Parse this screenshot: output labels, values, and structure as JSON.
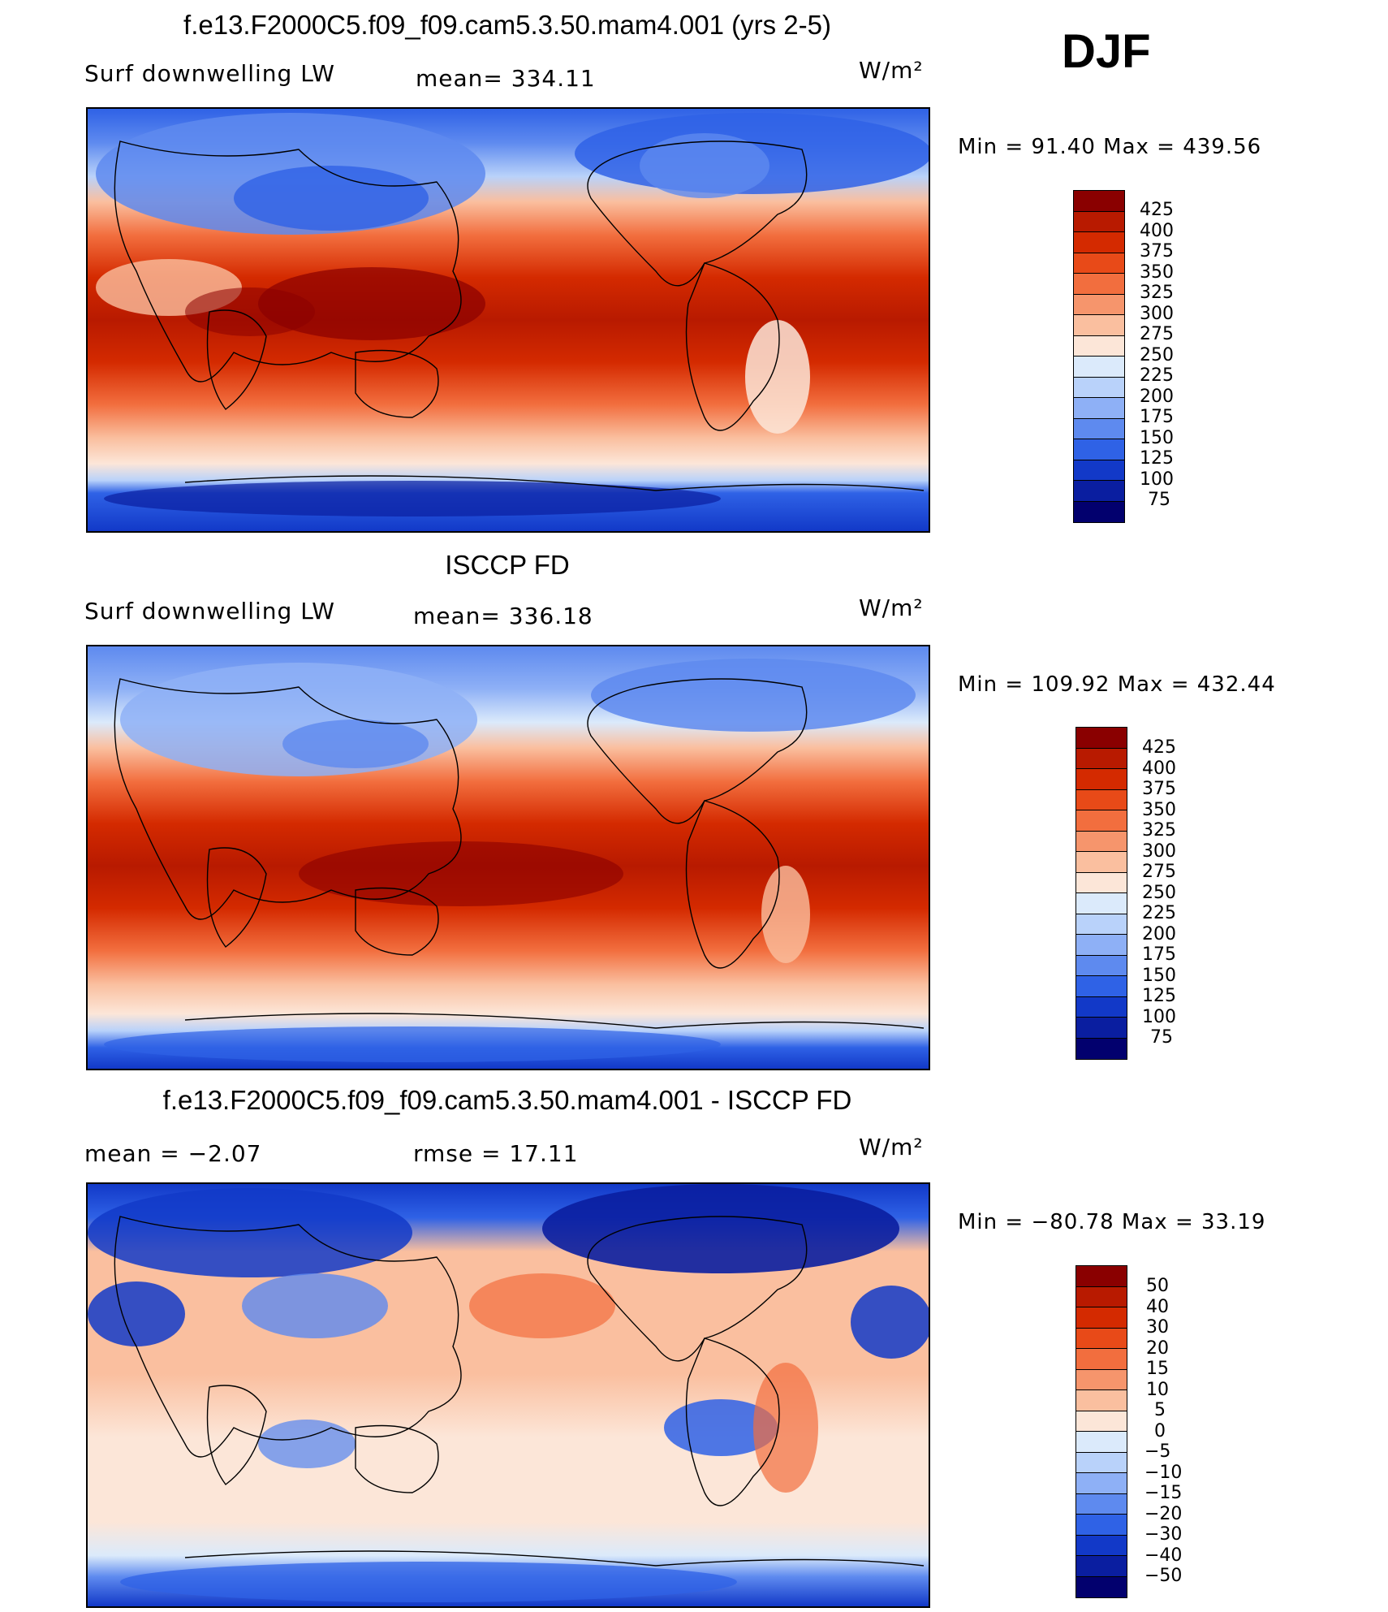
{
  "season": "DJF",
  "units_label": "W/m²",
  "panels": [
    {
      "title": "f.e13.F2000C5.f09_f09.cam5.3.50.mam4.001 (yrs 2-5)",
      "left_label": "Surf downwelling LW",
      "center_label": "mean= 334.11",
      "units": "W/m²",
      "min_max": "Min =   91.40 Max = 439.56",
      "colorbar": {
        "levels": [
          "425",
          "400",
          "375",
          "350",
          "325",
          "300",
          "275",
          "250",
          "225",
          "200",
          "175",
          "150",
          "125",
          "100",
          "75"
        ],
        "colors": [
          "#8a0000",
          "#b81a00",
          "#d42a00",
          "#e84a18",
          "#f26e3e",
          "#f6956c",
          "#fabf9f",
          "#fce6d8",
          "#dbeafb",
          "#b9d2fa",
          "#8eb0f6",
          "#5e8aef",
          "#2f62e6",
          "#1239c8",
          "#0a1ea0",
          "#02006e"
        ]
      }
    },
    {
      "title": "ISCCP FD",
      "left_label": "Surf downwelling LW",
      "center_label": "mean= 336.18",
      "units": "W/m²",
      "min_max": "Min = 109.92 Max = 432.44",
      "colorbar": {
        "levels": [
          "425",
          "400",
          "375",
          "350",
          "325",
          "300",
          "275",
          "250",
          "225",
          "200",
          "175",
          "150",
          "125",
          "100",
          "75"
        ],
        "colors": [
          "#8a0000",
          "#b81a00",
          "#d42a00",
          "#e84a18",
          "#f26e3e",
          "#f6956c",
          "#fabf9f",
          "#fce6d8",
          "#dbeafb",
          "#b9d2fa",
          "#8eb0f6",
          "#5e8aef",
          "#2f62e6",
          "#1239c8",
          "#0a1ea0",
          "#02006e"
        ]
      }
    },
    {
      "title": "f.e13.F2000C5.f09_f09.cam5.3.50.mam4.001 - ISCCP FD",
      "left_label": "mean =   −2.07",
      "center_label": "rmse =    17.11",
      "units": "W/m²",
      "min_max": "Min = −80.78 Max =   33.19",
      "colorbar": {
        "levels": [
          "50",
          "40",
          "30",
          "20",
          "15",
          "10",
          "5",
          "0",
          "−5",
          "−10",
          "−15",
          "−20",
          "−30",
          "−40",
          "−50"
        ],
        "colors": [
          "#8a0000",
          "#b81a00",
          "#d42a00",
          "#e84a18",
          "#f26e3e",
          "#f6956c",
          "#fabf9f",
          "#fce6d8",
          "#dbeafb",
          "#b9d2fa",
          "#8eb0f6",
          "#5e8aef",
          "#2f62e6",
          "#1239c8",
          "#0a1ea0",
          "#02006e"
        ]
      }
    }
  ]
}
